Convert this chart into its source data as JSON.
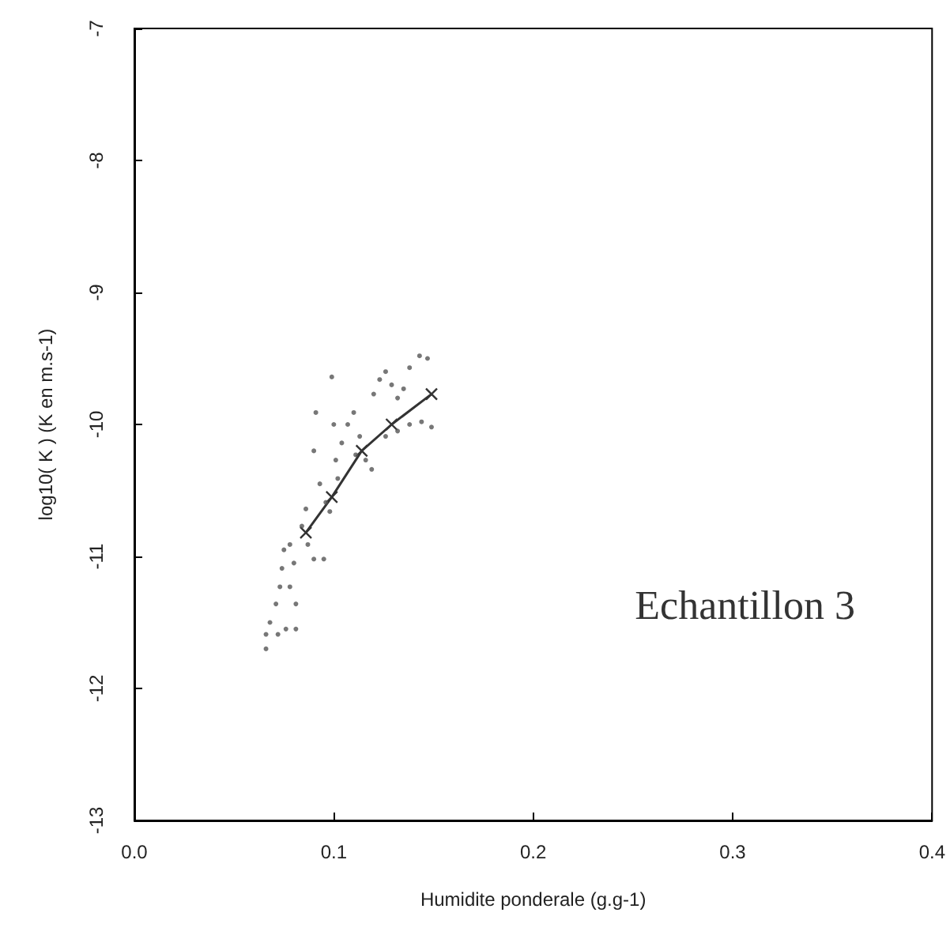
{
  "chart_data": {
    "type": "scatter",
    "xlabel": "Humidite ponderale (g.g-1)",
    "ylabel": "log10( K ) (K en m.s-1)",
    "annotations": [
      "Echantillon 3"
    ],
    "xlim": [
      0,
      0.4
    ],
    "xticks": [
      {
        "value": 0,
        "label": "0.0"
      },
      0.1,
      0.2,
      0.3,
      0.4
    ],
    "ylim": [
      -13,
      -7
    ],
    "yticks": [
      -13,
      -12,
      -11,
      -10,
      -9,
      -8,
      -7
    ],
    "grid": false,
    "series": [
      {
        "type": "scatter",
        "marker": "circle",
        "color": "#555555",
        "x": [
          0.066,
          0.066,
          0.068,
          0.071,
          0.073,
          0.074,
          0.075,
          0.078,
          0.08,
          0.078,
          0.081,
          0.081,
          0.076,
          0.072,
          0.084,
          0.087,
          0.09,
          0.095,
          0.09,
          0.091,
          0.093,
          0.098,
          0.099,
          0.1,
          0.101,
          0.104,
          0.107,
          0.11,
          0.113,
          0.116,
          0.119,
          0.12,
          0.123,
          0.126,
          0.129,
          0.132,
          0.135,
          0.138,
          0.143,
          0.147,
          0.126,
          0.132,
          0.138,
          0.144,
          0.149,
          0.111,
          0.102,
          0.096,
          0.086
        ],
        "values": [
          -11.7,
          -11.59,
          -11.5,
          -11.36,
          -11.23,
          -11.09,
          -10.95,
          -10.91,
          -11.05,
          -11.23,
          -11.36,
          -11.55,
          -11.55,
          -11.59,
          -10.77,
          -10.91,
          -11.02,
          -11.02,
          -10.2,
          -9.91,
          -10.45,
          -10.66,
          -9.64,
          -10.0,
          -10.27,
          -10.14,
          -10.0,
          -9.91,
          -10.09,
          -10.27,
          -10.34,
          -9.77,
          -9.66,
          -9.6,
          -9.7,
          -9.8,
          -9.73,
          -9.57,
          -9.48,
          -9.5,
          -10.09,
          -10.05,
          -10.0,
          -9.98,
          -10.02,
          -10.23,
          -10.41,
          -10.59,
          -10.64
        ]
      },
      {
        "type": "line",
        "marker": "cross",
        "line_style": "solid",
        "color": "#333333",
        "x": [
          0.086,
          0.099,
          0.114,
          0.129,
          0.149
        ],
        "values": [
          -10.82,
          -10.55,
          -10.2,
          -10.0,
          -9.77
        ]
      }
    ]
  }
}
